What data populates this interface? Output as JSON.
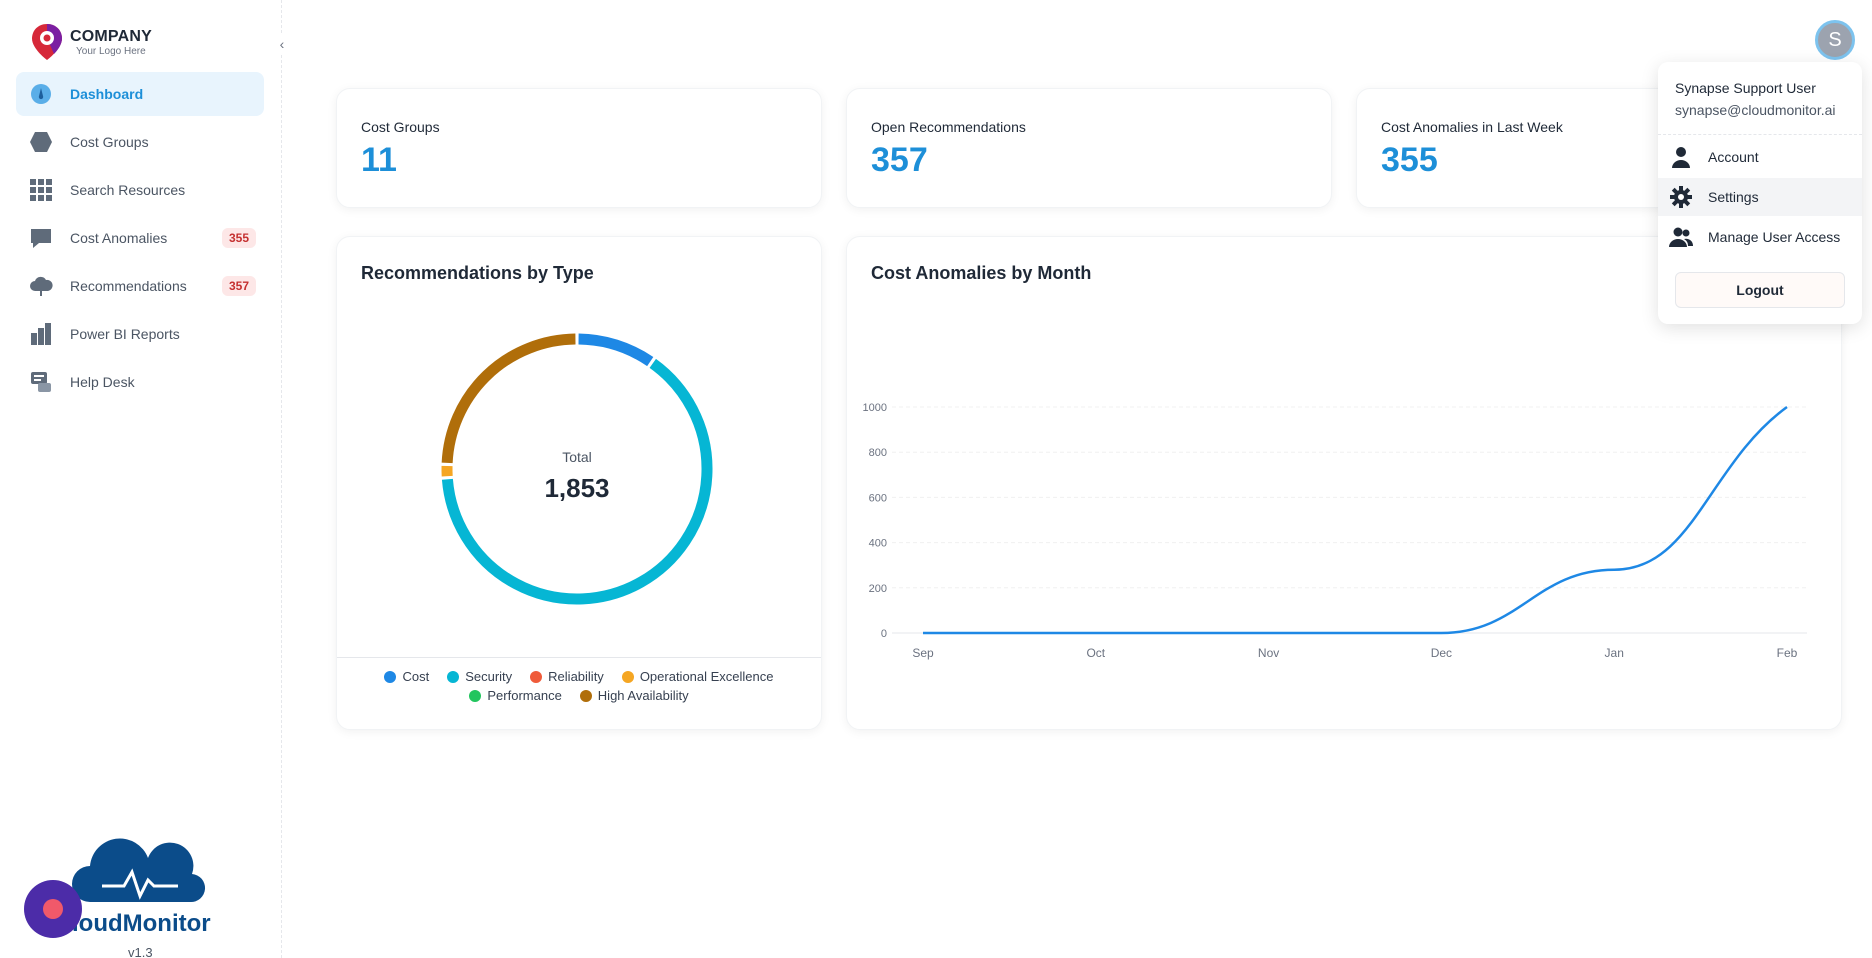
{
  "brand": {
    "company": "COMPANY",
    "tagline": "Your Logo Here",
    "product": "loudMonitor",
    "version": "v1.3"
  },
  "sidebar": {
    "collapse_icon": "chevron-left-icon",
    "items": [
      {
        "label": "Dashboard",
        "icon": "dashboard-gauge-icon",
        "active": true
      },
      {
        "label": "Cost Groups",
        "icon": "hexagon-icon"
      },
      {
        "label": "Search Resources",
        "icon": "grid-icon"
      },
      {
        "label": "Cost Anomalies",
        "icon": "chat-bubble-icon",
        "badge": "355"
      },
      {
        "label": "Recommendations",
        "icon": "cloud-icon",
        "badge": "357"
      },
      {
        "label": "Power BI Reports",
        "icon": "bar-chart-icon"
      },
      {
        "label": "Help Desk",
        "icon": "help-desk-icon"
      }
    ]
  },
  "stats": [
    {
      "label": "Cost Groups",
      "value": "11"
    },
    {
      "label": "Open Recommendations",
      "value": "357"
    },
    {
      "label": "Cost Anomalies in Last Week",
      "value": "355"
    }
  ],
  "recommendations_card": {
    "title": "Recommendations by Type",
    "total_label": "Total",
    "total_value": "1,853",
    "legend": [
      {
        "name": "Cost",
        "color": "#1e88e5"
      },
      {
        "name": "Security",
        "color": "#06b6d4"
      },
      {
        "name": "Reliability",
        "color": "#ef5b3a"
      },
      {
        "name": "Operational Excellence",
        "color": "#f5a623"
      },
      {
        "name": "Performance",
        "color": "#22c55e"
      },
      {
        "name": "High Availability",
        "color": "#b06e0a"
      }
    ]
  },
  "anomalies_card": {
    "title": "Cost Anomalies by Month"
  },
  "chart_data": [
    {
      "type": "pie",
      "title": "Recommendations by Type",
      "categories": [
        "Cost",
        "Security",
        "Reliability",
        "Operational Excellence",
        "Performance",
        "High Availability"
      ],
      "values": [
        180,
        1190,
        0,
        30,
        0,
        453
      ],
      "colors": [
        "#1e88e5",
        "#06b6d4",
        "#ef5b3a",
        "#f5a623",
        "#22c55e",
        "#b06e0a"
      ],
      "donut": true,
      "legend": "bottom"
    },
    {
      "type": "line",
      "title": "Cost Anomalies by Month",
      "x": [
        "Sep",
        "Oct",
        "Nov",
        "Dec",
        "Jan",
        "Feb"
      ],
      "values": [
        0,
        0,
        0,
        0,
        280,
        1000
      ],
      "yticks": [
        0,
        200,
        400,
        600,
        800,
        1000
      ],
      "ylim": [
        0,
        1000
      ],
      "color": "#1e88e5",
      "grid": true
    }
  ],
  "user_menu": {
    "avatar_letter": "S",
    "name": "Synapse Support User",
    "email": "synapse@cloudmonitor.ai",
    "items": [
      {
        "label": "Account",
        "icon": "person-icon"
      },
      {
        "label": "Settings",
        "icon": "gear-icon"
      },
      {
        "label": "Manage User Access",
        "icon": "users-icon"
      }
    ],
    "logout_label": "Logout"
  }
}
